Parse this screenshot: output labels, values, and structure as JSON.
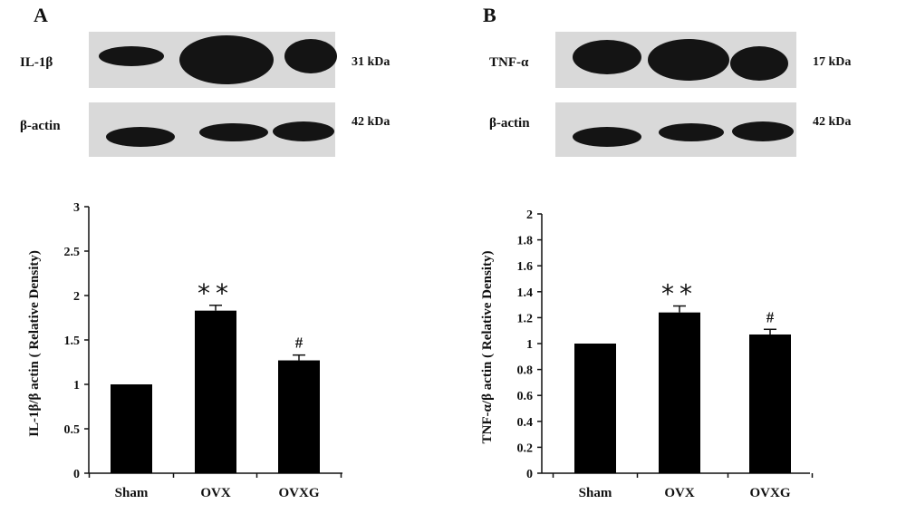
{
  "panels": [
    {
      "label": "A",
      "blots": [
        {
          "label": "IL-1β",
          "kda": "31 kDa"
        },
        {
          "label": "β-actin",
          "kda": "42 kDa"
        }
      ]
    },
    {
      "label": "B",
      "blots": [
        {
          "label": "TNF-α",
          "kda": "17 kDa"
        },
        {
          "label": "β-actin",
          "kda": "42 kDa"
        }
      ]
    }
  ],
  "colors": {
    "bar": "#000000",
    "axis": "#111111",
    "blot_bg": "#d9d9d9",
    "band": "#141414"
  },
  "chart_data": [
    {
      "type": "bar",
      "categories": [
        "Sham",
        "OVX",
        "OVXG"
      ],
      "values": [
        1.0,
        1.83,
        1.27
      ],
      "errors": [
        0.005,
        0.06,
        0.06
      ],
      "annotations": [
        "",
        "**",
        "#"
      ],
      "title": "",
      "xlabel": "",
      "ylabel": "IL-1β/β actin ( Relative Density)",
      "ylim": [
        0,
        3
      ],
      "yticks": [
        0,
        0.5,
        1,
        1.5,
        2,
        2.5,
        3
      ],
      "ytick_labels": [
        "0",
        "0.5",
        "1",
        "1.5",
        "2",
        "2.5",
        "3"
      ],
      "grid": false
    },
    {
      "type": "bar",
      "categories": [
        "Sham",
        "OVX",
        "OVXG"
      ],
      "values": [
        1.0,
        1.24,
        1.07
      ],
      "errors": [
        0.003,
        0.05,
        0.04
      ],
      "annotations": [
        "",
        "**",
        "#"
      ],
      "title": "",
      "xlabel": "",
      "ylabel": "TNF-α/β actin ( Relative Density)",
      "ylim": [
        0,
        2
      ],
      "yticks": [
        0,
        0.2,
        0.4,
        0.6,
        0.8,
        1,
        1.2,
        1.4,
        1.6,
        1.8,
        2
      ],
      "ytick_labels": [
        "0",
        "0.2",
        "0.4",
        "0.6",
        "0.8",
        "1",
        "1.2",
        "1.4",
        "1.6",
        "1.8",
        "2"
      ],
      "grid": false
    }
  ]
}
